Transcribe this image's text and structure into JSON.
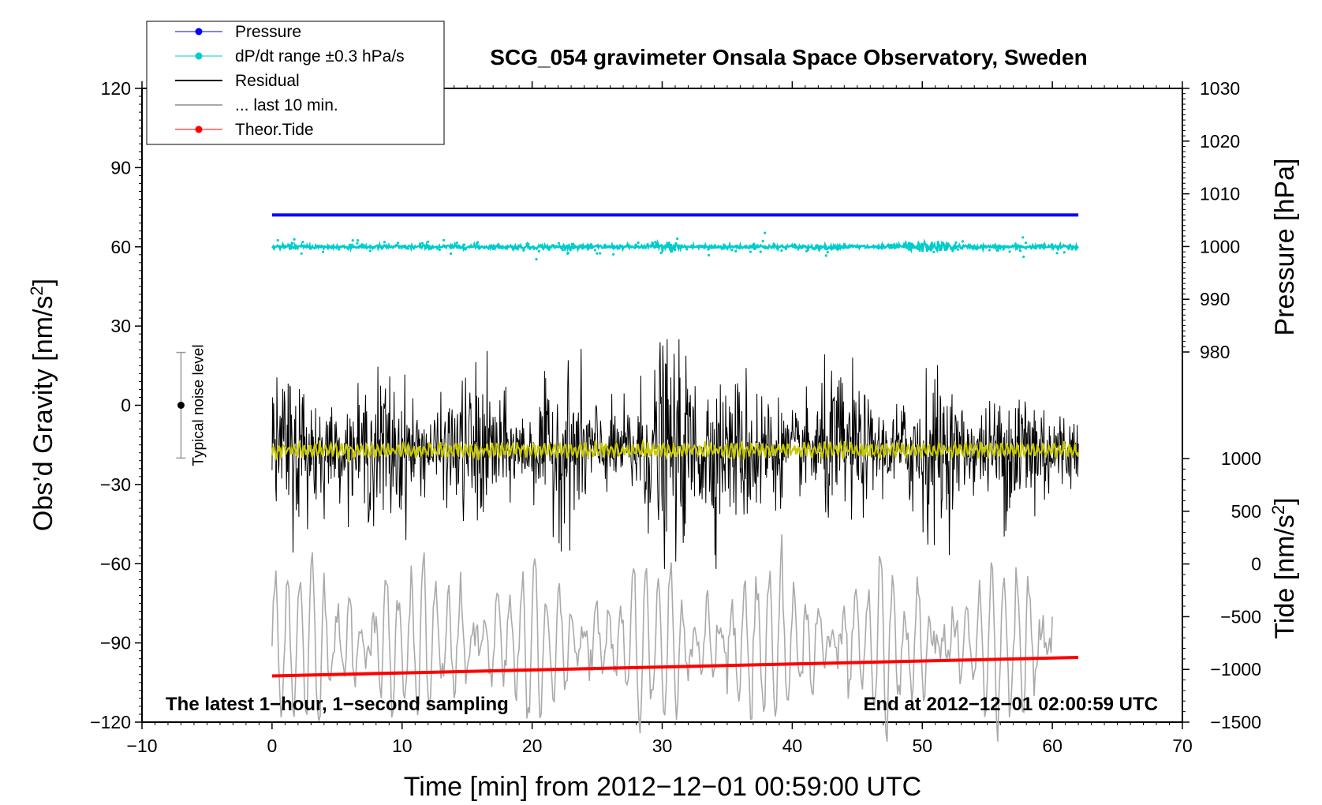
{
  "chart_data": {
    "type": "line",
    "title": "SCG_054 gravimeter Onsala Space Observatory, Sweden",
    "xlabel": "Time [min] from 2012−12−01 00:59:00 UTC",
    "ylabel_left": "Obs’d Gravity [nm/s",
    "ylabel_left_sup": "2",
    "ylabel_left_end": "]",
    "ylabel_right_top": "Pressure [hPa]",
    "ylabel_right_bottom": "Tide [nm/s",
    "ylabel_right_bottom_sup": "2",
    "ylabel_right_bottom_end": "]",
    "xlim": [
      -10,
      70
    ],
    "ylim_left": [
      -120,
      120
    ],
    "ylim_pressure": [
      980,
      1030
    ],
    "ylim_tide": [
      -1500,
      1000
    ],
    "x_ticks": [
      -10,
      0,
      10,
      20,
      30,
      40,
      50,
      60,
      70
    ],
    "x_tick_labels": [
      "−10",
      "0",
      "10",
      "20",
      "30",
      "40",
      "50",
      "60",
      "70"
    ],
    "left_ticks": [
      -120,
      -90,
      -60,
      -30,
      0,
      30,
      60,
      90,
      120
    ],
    "left_tick_labels": [
      "−120",
      "−90",
      "−60",
      "−30",
      "0",
      "30",
      "60",
      "90",
      "120"
    ],
    "pressure_ticks": [
      980,
      990,
      1000,
      1010,
      1020,
      1030
    ],
    "pressure_tick_labels": [
      "980",
      "990",
      "1000",
      "1010",
      "1020",
      "1030"
    ],
    "tide_ticks": [
      -1500,
      -1000,
      -500,
      0,
      500,
      1000
    ],
    "tide_tick_labels": [
      "−1500",
      "−1000",
      "−500",
      "0",
      "500",
      "1000"
    ],
    "legend": [
      {
        "label": "Pressure",
        "color": "#0000ff",
        "marker": true
      },
      {
        "label": "dP/dt range ±0.3 hPa/s",
        "color": "#00cccc",
        "marker": true
      },
      {
        "label": "Residual",
        "color": "#000000",
        "marker": false
      },
      {
        "label": "... last 10 min.",
        "color": "#aaaaaa",
        "marker": false
      },
      {
        "label": "Theor.Tide",
        "color": "#ff0000",
        "marker": true
      }
    ],
    "series": [
      {
        "name": "Pressure",
        "axis": "pressure",
        "color": "#0000ff",
        "x_range": [
          0,
          62
        ],
        "value_hPa": 1006
      },
      {
        "name": "dP/dt range ±0.3 hPa/s",
        "axis": "left",
        "color": "#00cccc",
        "x_range": [
          0,
          62
        ],
        "baseline": 60,
        "spread": 1.5
      },
      {
        "name": "Residual",
        "axis": "left",
        "color": "#000000",
        "x_range": [
          0,
          62
        ],
        "baseline": -17,
        "typical_min": -45,
        "typical_max": 15,
        "peak_max": 25,
        "peak_min": -62
      },
      {
        "name": "Residual smoothed",
        "axis": "left",
        "color": "#c8c800",
        "x_range": [
          0,
          62
        ],
        "baseline": -17,
        "spread": 4
      },
      {
        "name": "... last 10 min.",
        "axis": "left",
        "color": "#aaaaaa",
        "x_range": [
          0,
          60
        ],
        "baseline": -90,
        "typical_min": -120,
        "typical_max": -60
      },
      {
        "name": "Theor.Tide",
        "axis": "left",
        "color": "#ff0000",
        "x": [
          0,
          62
        ],
        "y": [
          -102.5,
          -95.5
        ]
      }
    ],
    "noise_bar": {
      "x": -7,
      "center": 0,
      "low": -20,
      "high": 20,
      "label": "Typical noise level"
    },
    "annotations": {
      "left": "The latest 1−hour, 1−second sampling",
      "right": "End at 2012−12−01 02:00:59 UTC"
    }
  }
}
